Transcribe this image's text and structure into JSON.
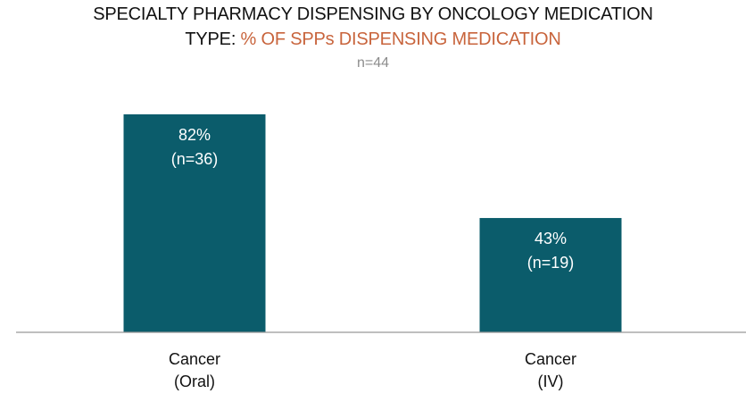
{
  "header": {
    "title_line1": "SPECIALTY PHARMACY DISPENSING BY ONCOLOGY MEDICATION",
    "title_line2_prefix": "TYPE: ",
    "title_line2_accent": "% OF SPPs DISPENSING MEDICATION",
    "sample": "n=44"
  },
  "colors": {
    "bar": "#0b5c6b",
    "accent": "#c8643c",
    "baseline": "#999999"
  },
  "chart_data": {
    "type": "bar",
    "title": "SPECIALTY PHARMACY DISPENSING BY ONCOLOGY MEDICATION TYPE: % OF SPPs DISPENSING MEDICATION",
    "subtitle": "n=44",
    "categories": [
      [
        "Cancer",
        "(Oral)"
      ],
      [
        "Cancer",
        "(IV)"
      ]
    ],
    "values": [
      82,
      43
    ],
    "data_labels": [
      [
        "82%",
        "(n=36)"
      ],
      [
        "43%",
        "(n=19)"
      ]
    ],
    "ylim": [
      0,
      100
    ],
    "grid": false,
    "legend": "none"
  }
}
